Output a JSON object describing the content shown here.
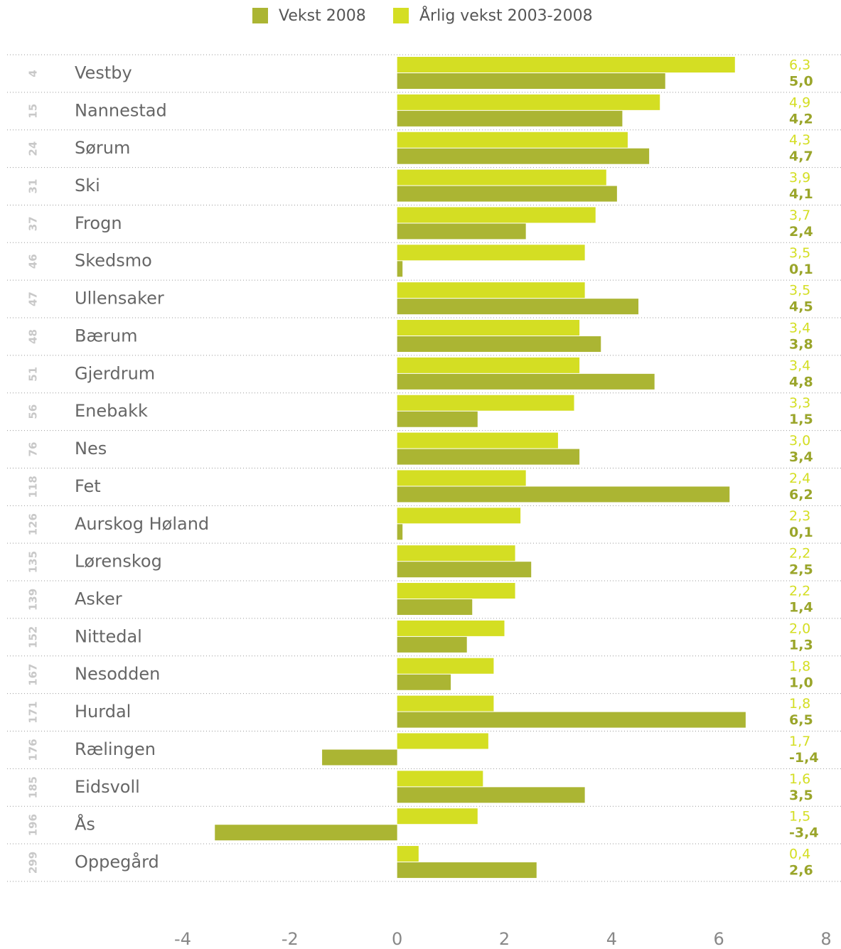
{
  "chart_data": {
    "type": "hbar",
    "categories": [
      "Vestby",
      "Nannestad",
      "Sørum",
      "Ski",
      "Frogn",
      "Skedsmo",
      "Ullensaker",
      "Bærum",
      "Gjerdrum",
      "Enebakk",
      "Nes",
      "Fet",
      "Aurskog Høland",
      "Lørenskog",
      "Asker",
      "Nittedal",
      "Nesodden",
      "Hurdal",
      "Rælingen",
      "Eidsvoll",
      "Ås",
      "Oppegård"
    ],
    "ranks": [
      "4",
      "15",
      "24",
      "31",
      "37",
      "46",
      "47",
      "48",
      "51",
      "56",
      "76",
      "118",
      "126",
      "135",
      "139",
      "152",
      "167",
      "171",
      "176",
      "185",
      "196",
      "299"
    ],
    "series": [
      {
        "name": "Vekst 2008",
        "color": "#abb533",
        "values": [
          5.0,
          4.2,
          4.7,
          4.1,
          2.4,
          0.1,
          4.5,
          3.8,
          4.8,
          1.5,
          3.4,
          6.2,
          0.1,
          2.5,
          1.4,
          1.3,
          1.0,
          6.5,
          -1.4,
          3.5,
          -3.4,
          2.6
        ],
        "value_labels": [
          "5,0",
          "4,2",
          "4,7",
          "4,1",
          "2,4",
          "0,1",
          "4,5",
          "3,8",
          "4,8",
          "1,5",
          "3,4",
          "6,2",
          "0,1",
          "2,5",
          "1,4",
          "1,3",
          "1,0",
          "6,5",
          "-1,4",
          "3,5",
          "-3,4",
          "2,6"
        ]
      },
      {
        "name": "Årlig vekst 2003-2008",
        "color": "#d4de23",
        "values": [
          6.3,
          4.9,
          4.3,
          3.9,
          3.7,
          3.5,
          3.5,
          3.4,
          3.4,
          3.3,
          3.0,
          2.4,
          2.3,
          2.2,
          2.2,
          2.0,
          1.8,
          1.8,
          1.7,
          1.6,
          1.5,
          0.4
        ],
        "value_labels": [
          "6,3",
          "4,9",
          "4,3",
          "3,9",
          "3,7",
          "3,5",
          "3,5",
          "3,4",
          "3,4",
          "3,3",
          "3,0",
          "2,4",
          "2,3",
          "2,2",
          "2,2",
          "2,0",
          "1,8",
          "1,8",
          "1,7",
          "1,6",
          "1,5",
          "0,4"
        ]
      }
    ],
    "xlim": [
      -4,
      8
    ],
    "xticks": [
      -4,
      -2,
      0,
      2,
      4,
      6,
      8
    ]
  }
}
